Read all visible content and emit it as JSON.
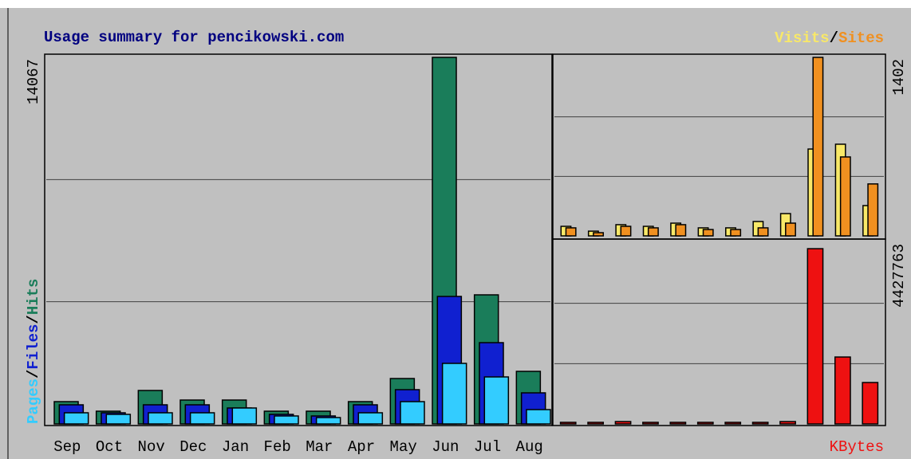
{
  "chart_data": [
    {
      "type": "bar",
      "title": "Usage summary for pencikowski.com",
      "categories": [
        "Sep",
        "Oct",
        "Nov",
        "Dec",
        "Jan",
        "Feb",
        "Mar",
        "Apr",
        "May",
        "Jun",
        "Jul",
        "Aug"
      ],
      "ylim": [
        0,
        14067
      ],
      "separator": "/",
      "series": [
        {
          "name": "Hits",
          "color": "#1a7d5a",
          "values": [
            856,
            489,
            1284,
            917,
            917,
            489,
            489,
            856,
            1743,
            14067,
            4954,
            2018
          ]
        },
        {
          "name": "Files",
          "color": "#1020d0",
          "values": [
            734,
            428,
            734,
            734,
            612,
            367,
            306,
            734,
            1315,
            4893,
            3119,
            1193
          ]
        },
        {
          "name": "Pages",
          "color": "#33ccff",
          "values": [
            428,
            367,
            428,
            428,
            612,
            306,
            245,
            428,
            856,
            2324,
            1804,
            550
          ]
        }
      ]
    },
    {
      "type": "bar",
      "ylim": [
        0,
        1402
      ],
      "separator": "/",
      "series": [
        {
          "name": "Visits",
          "color": "#f8e868",
          "values": [
            75,
            37,
            88,
            75,
            100,
            63,
            63,
            113,
            175,
            682,
            720,
            238
          ]
        },
        {
          "name": "Sites",
          "color": "#f09020",
          "values": [
            63,
            25,
            75,
            63,
            88,
            50,
            50,
            63,
            100,
            1402,
            620,
            408
          ]
        }
      ]
    },
    {
      "type": "bar",
      "ylim": [
        0,
        4427763
      ],
      "series": [
        {
          "name": "KBytes",
          "color": "#ee1111",
          "values": [
            39000,
            39000,
            58000,
            39000,
            39000,
            39000,
            39000,
            39000,
            58000,
            4290000,
            1638000,
            1014000
          ]
        }
      ]
    }
  ]
}
